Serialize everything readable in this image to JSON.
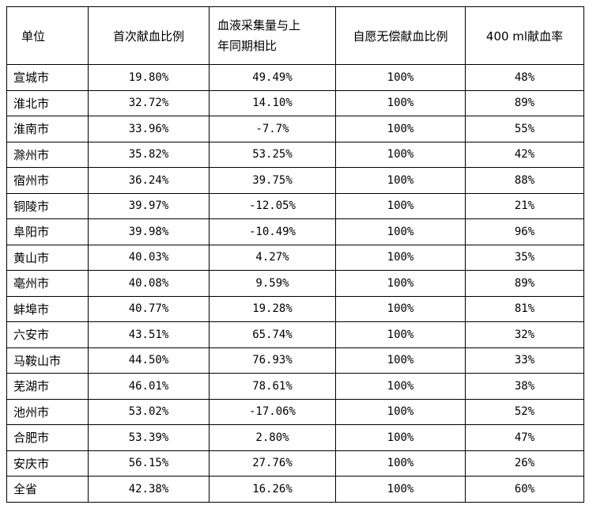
{
  "headers": {
    "unit": "单位",
    "first_time": "首次献血比例",
    "collection_line1": "血液采集量与上",
    "collection_line2": "年同期相比",
    "voluntary": "自愿无偿献血比例",
    "rate400": "400 ml献血率"
  },
  "rows": [
    {
      "unit": "宣城市",
      "first": "19.80%",
      "change": "49.49%",
      "voluntary": "100%",
      "rate400": "48%"
    },
    {
      "unit": "淮北市",
      "first": "32.72%",
      "change": "14.10%",
      "voluntary": "100%",
      "rate400": "89%"
    },
    {
      "unit": "淮南市",
      "first": "33.96%",
      "change": "-7.7%",
      "voluntary": "100%",
      "rate400": "55%"
    },
    {
      "unit": "滁州市",
      "first": "35.82%",
      "change": "53.25%",
      "voluntary": "100%",
      "rate400": "42%"
    },
    {
      "unit": "宿州市",
      "first": "36.24%",
      "change": "39.75%",
      "voluntary": "100%",
      "rate400": "88%"
    },
    {
      "unit": "铜陵市",
      "first": "39.97%",
      "change": "-12.05%",
      "voluntary": "100%",
      "rate400": "21%"
    },
    {
      "unit": "阜阳市",
      "first": "39.98%",
      "change": "-10.49%",
      "voluntary": "100%",
      "rate400": "96%"
    },
    {
      "unit": "黄山市",
      "first": "40.03%",
      "change": "4.27%",
      "voluntary": "100%",
      "rate400": "35%"
    },
    {
      "unit": "亳州市",
      "first": "40.08%",
      "change": "9.59%",
      "voluntary": "100%",
      "rate400": "89%"
    },
    {
      "unit": "蚌埠市",
      "first": "40.77%",
      "change": "19.28%",
      "voluntary": "100%",
      "rate400": "81%"
    },
    {
      "unit": "六安市",
      "first": "43.51%",
      "change": "65.74%",
      "voluntary": "100%",
      "rate400": "32%"
    },
    {
      "unit": "马鞍山市",
      "first": "44.50%",
      "change": "76.93%",
      "voluntary": "100%",
      "rate400": "33%"
    },
    {
      "unit": "芜湖市",
      "first": "46.01%",
      "change": "78.61%",
      "voluntary": "100%",
      "rate400": "38%"
    },
    {
      "unit": "池州市",
      "first": "53.02%",
      "change": "-17.06%",
      "voluntary": "100%",
      "rate400": "52%"
    },
    {
      "unit": "合肥市",
      "first": "53.39%",
      "change": "2.80%",
      "voluntary": "100%",
      "rate400": "47%"
    },
    {
      "unit": "安庆市",
      "first": "56.15%",
      "change": "27.76%",
      "voluntary": "100%",
      "rate400": "26%"
    },
    {
      "unit": "全省",
      "first": "42.38%",
      "change": "16.26%",
      "voluntary": "100%",
      "rate400": "60%"
    }
  ]
}
